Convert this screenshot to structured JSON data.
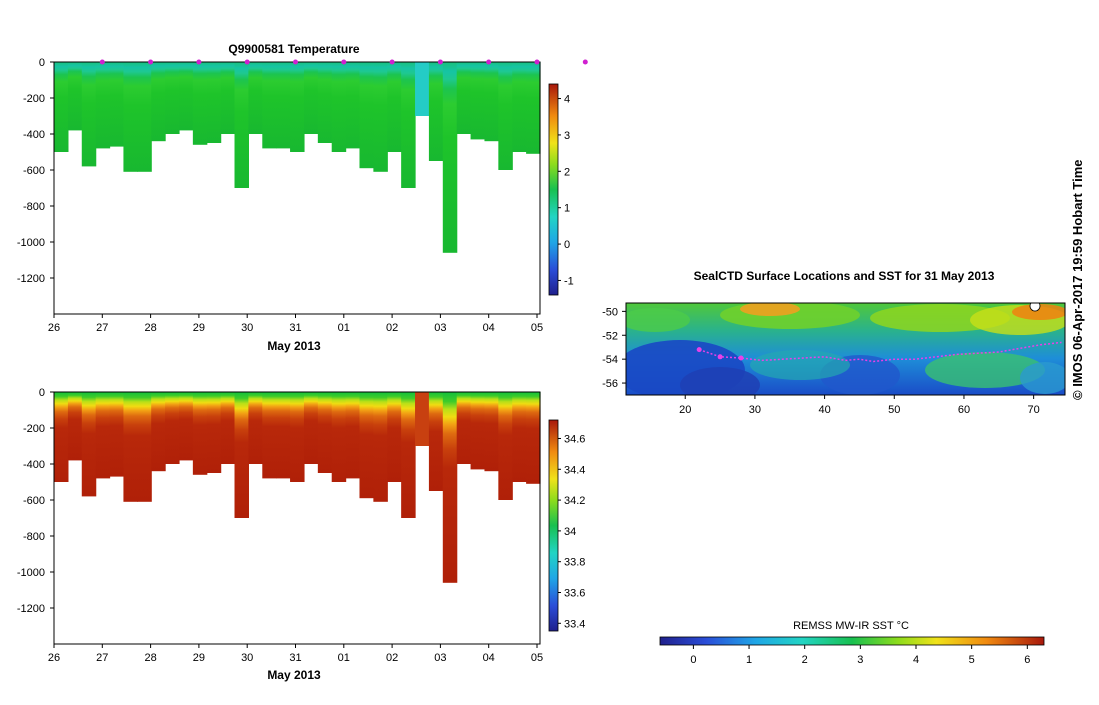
{
  "credit": "© IMOS 06-Apr-2017 19:59 Hobart Time",
  "chart_data": [
    {
      "type": "heatmap",
      "title": "Q9900581  Temperature",
      "xlabel": "May 2013",
      "ylabel": "",
      "x_tick_labels": [
        "26",
        "27",
        "28",
        "29",
        "30",
        "31",
        "01",
        "02",
        "03",
        "04",
        "05"
      ],
      "y_ticks": [
        0,
        -200,
        -400,
        -600,
        -800,
        -1000,
        -1200
      ],
      "y_tick_labels": [
        "0",
        "-200",
        "-400",
        "-600",
        "-800",
        "-1000",
        "-1200"
      ],
      "ylim": [
        -1400,
        0
      ],
      "surfacing_markers_days": [
        1,
        2,
        3,
        4,
        5,
        6,
        7,
        8,
        9,
        10,
        11
      ],
      "profile_max_depths_m": [
        500,
        380,
        580,
        480,
        470,
        610,
        610,
        440,
        400,
        380,
        460,
        450,
        400,
        700,
        400,
        480,
        480,
        500,
        400,
        450,
        500,
        480,
        590,
        610,
        500,
        700,
        300,
        550,
        1060,
        400,
        430,
        440,
        600,
        500,
        510
      ],
      "colorbar": {
        "label": "",
        "min": -1.4,
        "max": 4.4,
        "tick_labels": [
          "-1",
          "0",
          "1",
          "2",
          "3",
          "4"
        ],
        "ticks": [
          -1,
          0,
          1,
          2,
          3,
          4
        ]
      }
    },
    {
      "type": "heatmap",
      "title": "",
      "xlabel": "May 2013",
      "ylabel": "",
      "x_tick_labels": [
        "26",
        "27",
        "28",
        "29",
        "30",
        "31",
        "01",
        "02",
        "03",
        "04",
        "05"
      ],
      "y_ticks": [
        0,
        -200,
        -400,
        -600,
        -800,
        -1000,
        -1200
      ],
      "y_tick_labels": [
        "0",
        "-200",
        "-400",
        "-600",
        "-800",
        "-1000",
        "-1200"
      ],
      "ylim": [
        -1400,
        0
      ],
      "profile_max_depths_m": [
        500,
        380,
        580,
        480,
        470,
        610,
        610,
        440,
        400,
        380,
        460,
        450,
        400,
        700,
        400,
        480,
        480,
        500,
        400,
        450,
        500,
        480,
        590,
        610,
        500,
        700,
        300,
        550,
        1060,
        400,
        430,
        440,
        600,
        500,
        510
      ],
      "colorbar": {
        "label": "",
        "min": 33.35,
        "max": 34.72,
        "tick_labels": [
          "33.4",
          "33.6",
          "33.8",
          "34",
          "34.2",
          "34.4",
          "34.6"
        ],
        "ticks": [
          33.4,
          33.6,
          33.8,
          34.0,
          34.2,
          34.4,
          34.6
        ]
      }
    },
    {
      "type": "heatmap",
      "title": "SealCTD Surface Locations and SST for 31 May 2013",
      "xlabel": "",
      "ylabel": "",
      "x_tick_labels": [
        "20",
        "30",
        "40",
        "50",
        "60",
        "70"
      ],
      "x_ticks": [
        20,
        30,
        40,
        50,
        60,
        70
      ],
      "xlim": [
        11.5,
        74.5
      ],
      "y_tick_labels": [
        "-50",
        "-52",
        "-54",
        "-56"
      ],
      "y_ticks": [
        -50,
        -52,
        -54,
        -56
      ],
      "ylim": [
        -57,
        -49.3
      ],
      "track_lon": [
        22,
        25,
        28,
        31,
        34,
        37,
        40,
        43,
        45,
        47,
        50,
        53,
        56,
        59,
        62,
        65,
        68,
        71,
        74
      ],
      "track_lat": [
        -53.2,
        -53.8,
        -53.9,
        -54.1,
        -54.0,
        -53.9,
        -53.8,
        -54.1,
        -54.0,
        -54.2,
        -54.0,
        -54.0,
        -53.8,
        -53.6,
        -53.5,
        -53.4,
        -53.1,
        -52.8,
        -52.6
      ],
      "colorbar": {
        "label": "REMSS MW-IR SST °C",
        "min": -0.6,
        "max": 6.3,
        "tick_labels": [
          "0",
          "1",
          "2",
          "3",
          "4",
          "5",
          "6"
        ],
        "ticks": [
          0,
          1,
          2,
          3,
          4,
          5,
          6
        ]
      }
    }
  ]
}
